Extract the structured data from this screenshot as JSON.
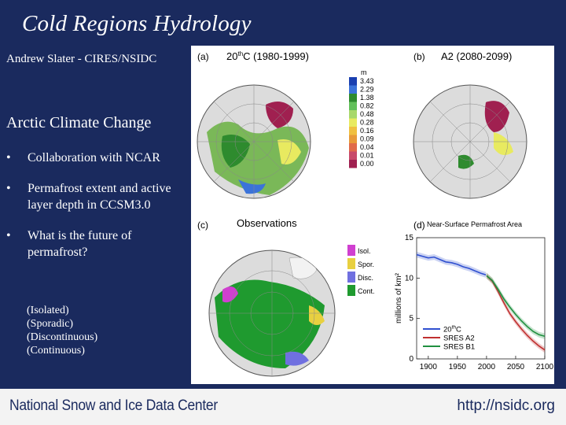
{
  "slide": {
    "title": "Cold Regions Hydrology",
    "author": "Andrew Slater - CIRES/NSIDC",
    "section": "Arctic Climate Change",
    "bullets": [
      {
        "symbol": "•",
        "text": "Collaboration with NCAR"
      },
      {
        "symbol": "•",
        "text": "Permafrost extent and active layer depth in CCSM3.0"
      },
      {
        "symbol": "•",
        "text": "What is the future of permafrost?"
      }
    ],
    "legend_lines": [
      "(Isolated)",
      "(Sporadic)",
      "(Discontinuous)",
      "(Continuous)"
    ]
  },
  "figure": {
    "panel_a": {
      "label": "(a)",
      "title_pre": "20",
      "title_sup": "th",
      "title_post": "C (1980-1999)"
    },
    "panel_b": {
      "label": "(b)",
      "title": "A2 (2080-2099)"
    },
    "panel_c": {
      "label": "(c)",
      "title": "Observations"
    },
    "panel_d": {
      "label": "(d)",
      "title": "Near-Surface Permafrost Area"
    },
    "depth_scale": {
      "unit": "m",
      "values": [
        "3.43",
        "2.29",
        "1.38",
        "0.82",
        "0.48",
        "0.28",
        "0.16",
        "0.09",
        "0.04",
        "0.01",
        "0.00"
      ],
      "colors": [
        "#1a3fb0",
        "#3b73d9",
        "#2e8b2e",
        "#62c05a",
        "#a8d86b",
        "#e8ea60",
        "#f0c040",
        "#e89a3a",
        "#e06a4a",
        "#c84a6a",
        "#a02050"
      ]
    },
    "obs_legend": [
      {
        "label": "Isol.",
        "color": "#d040d0"
      },
      {
        "label": "Spor.",
        "color": "#e8d040"
      },
      {
        "label": "Disc.",
        "color": "#7070e0"
      },
      {
        "label": "Cont.",
        "color": "#1f9a2f"
      }
    ]
  },
  "chart_data": {
    "type": "line",
    "title": "Near-Surface Permafrost Area",
    "ylabel": "millions of km²",
    "xlim": [
      1880,
      2100
    ],
    "ylim": [
      0,
      15
    ],
    "xticks": [
      1900,
      1950,
      2000,
      2050,
      2100
    ],
    "yticks": [
      0,
      5,
      10,
      15
    ],
    "legend_placement": "bottom-left",
    "series": [
      {
        "name_pre": "20",
        "name_sup": "th",
        "name_post": "C",
        "color": "#3050d0",
        "x": [
          1880,
          1890,
          1900,
          1910,
          1920,
          1930,
          1940,
          1950,
          1960,
          1970,
          1980,
          1990,
          1999
        ],
        "y": [
          12.9,
          12.7,
          12.5,
          12.6,
          12.3,
          12.0,
          11.9,
          11.7,
          11.4,
          11.2,
          10.9,
          10.6,
          10.4
        ]
      },
      {
        "name": "SRES A2",
        "color": "#c03030",
        "x": [
          2000,
          2010,
          2020,
          2030,
          2040,
          2050,
          2060,
          2070,
          2080,
          2090,
          2100
        ],
        "y": [
          10.3,
          9.6,
          8.3,
          6.9,
          5.6,
          4.6,
          3.7,
          2.9,
          2.2,
          1.6,
          1.1
        ]
      },
      {
        "name": "SRES B1",
        "color": "#209040",
        "x": [
          2000,
          2010,
          2020,
          2030,
          2040,
          2050,
          2060,
          2070,
          2080,
          2090,
          2100
        ],
        "y": [
          10.3,
          9.7,
          8.6,
          7.4,
          6.4,
          5.5,
          4.7,
          4.0,
          3.4,
          3.0,
          2.8
        ]
      }
    ]
  },
  "footer": {
    "organization": "National Snow and Ice Data Center",
    "url": "http://nsidc.org"
  }
}
